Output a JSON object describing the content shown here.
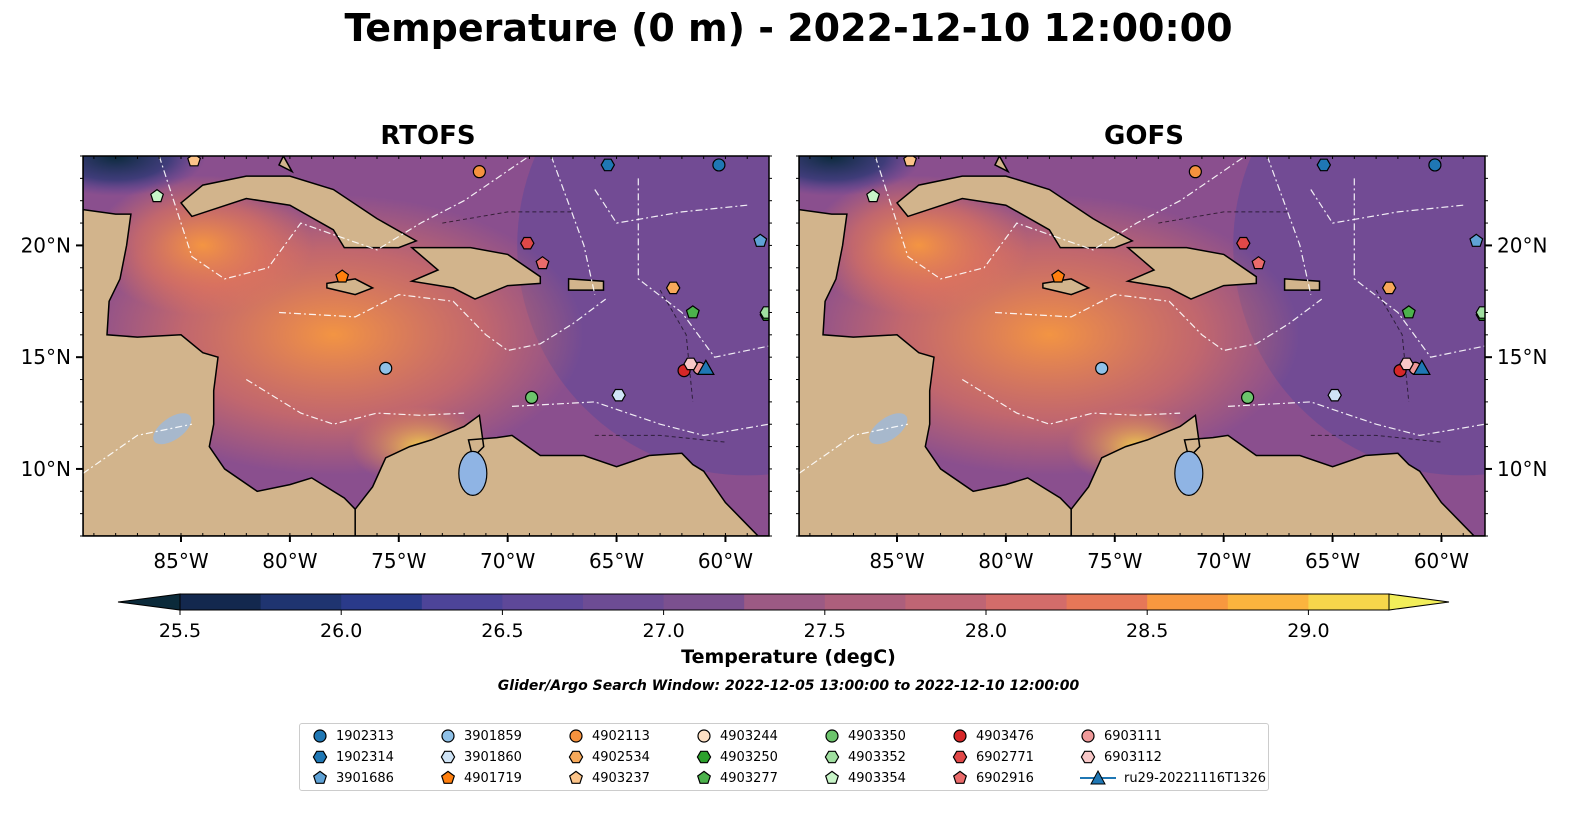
{
  "title": "Temperature (0 m) - 2022-12-10 12:00:00",
  "panels": [
    {
      "title": "RTOFS"
    },
    {
      "title": "GOFS"
    }
  ],
  "axes": {
    "x_ticks": [
      "85°W",
      "80°W",
      "75°W",
      "70°W",
      "65°W",
      "60°W"
    ],
    "x_values": [
      -85,
      -80,
      -75,
      -70,
      -65,
      -60
    ],
    "y_ticks": [
      "20°N",
      "15°N",
      "10°N"
    ],
    "y_values": [
      20,
      15,
      10
    ],
    "lon_range": [
      -89.5,
      -58.0
    ],
    "lat_range": [
      7.0,
      24.0
    ]
  },
  "colorbar": {
    "label": "Temperature (degC)",
    "ticks": [
      "25.5",
      "26.0",
      "26.5",
      "27.0",
      "27.5",
      "28.0",
      "28.5",
      "29.0"
    ],
    "min": 25.5,
    "max": 29.25,
    "step": 0.25,
    "extend": "both",
    "colors": [
      "#0b2a3a",
      "#13284e",
      "#1f3470",
      "#2a3a8a",
      "#3d3f99",
      "#4d4499",
      "#5e4899",
      "#6d4c94",
      "#7b508f",
      "#8c5489",
      "#9c5a84",
      "#ad5f7c",
      "#bf6574",
      "#d36c6a",
      "#e67758",
      "#f2854a",
      "#f8983f",
      "#fbb43e",
      "#f6d64b",
      "#f2ee5a"
    ]
  },
  "search_window": "Glider/Argo Search Window: 2022-12-05 13:00:00 to 2022-12-10 12:00:00",
  "colors": {
    "land": "#d2b48c",
    "lake": "#8fb4e4",
    "ocean_base": "#8a4f8e"
  },
  "floats": [
    {
      "id": "1902313",
      "marker": "circle",
      "color": "#1f77b4",
      "lon": -60.3,
      "lat": 23.6
    },
    {
      "id": "1902314",
      "marker": "hexagon",
      "color": "#1f77b4",
      "lon": -65.4,
      "lat": 23.6
    },
    {
      "id": "3901686",
      "marker": "pentagon",
      "color": "#5fa2d6",
      "lon": -58.4,
      "lat": 20.2
    },
    {
      "id": "3901859",
      "marker": "circle",
      "color": "#8fc1e8",
      "lon": -75.6,
      "lat": 14.5
    },
    {
      "id": "3901860",
      "marker": "hexagon",
      "color": "#d0e4f6",
      "lon": -64.9,
      "lat": 13.3
    },
    {
      "id": "4901719",
      "marker": "pentagon",
      "color": "#ff7f0e",
      "lon": -77.6,
      "lat": 18.6
    },
    {
      "id": "4902113",
      "marker": "circle",
      "color": "#f5923e",
      "lon": -71.3,
      "lat": 23.3
    },
    {
      "id": "4902534",
      "marker": "hexagon",
      "color": "#f7a95a",
      "lon": -62.4,
      "lat": 18.1
    },
    {
      "id": "4903237",
      "marker": "pentagon",
      "color": "#fcc489",
      "lon": -84.4,
      "lat": 23.8
    },
    {
      "id": "4903244",
      "marker": "circle",
      "color": "#fde0c4",
      "lon": -61.2,
      "lat": 14.5
    },
    {
      "id": "4903250",
      "marker": "hexagon",
      "color": "#2ca02c",
      "lon": -58.1,
      "lat": 16.9
    },
    {
      "id": "4903277",
      "marker": "pentagon",
      "color": "#4cb24c",
      "lon": -61.5,
      "lat": 17.0
    },
    {
      "id": "4903350",
      "marker": "circle",
      "color": "#6cc46c",
      "lon": -68.9,
      "lat": 13.2
    },
    {
      "id": "4903352",
      "marker": "hexagon",
      "color": "#a0dfa0",
      "lon": -58.1,
      "lat": 17.0
    },
    {
      "id": "4903354",
      "marker": "pentagon",
      "color": "#c8f5c8",
      "lon": -86.1,
      "lat": 22.2
    },
    {
      "id": "4903476",
      "marker": "circle",
      "color": "#d62728",
      "lon": -61.9,
      "lat": 14.4
    },
    {
      "id": "6902771",
      "marker": "hexagon",
      "color": "#e04848",
      "lon": -69.1,
      "lat": 20.1
    },
    {
      "id": "6902916",
      "marker": "pentagon",
      "color": "#ea6b6b",
      "lon": -68.4,
      "lat": 19.2
    },
    {
      "id": "6903111",
      "marker": "circle",
      "color": "#f09a9a",
      "lon": -61.2,
      "lat": 14.5
    },
    {
      "id": "6903112",
      "marker": "hexagon",
      "color": "#f8c8c8",
      "lon": -61.6,
      "lat": 14.7
    },
    {
      "id": "ru29-20221116T1326",
      "marker": "triangle",
      "color": "#1f77b4",
      "lon": -60.9,
      "lat": 14.5
    }
  ]
}
